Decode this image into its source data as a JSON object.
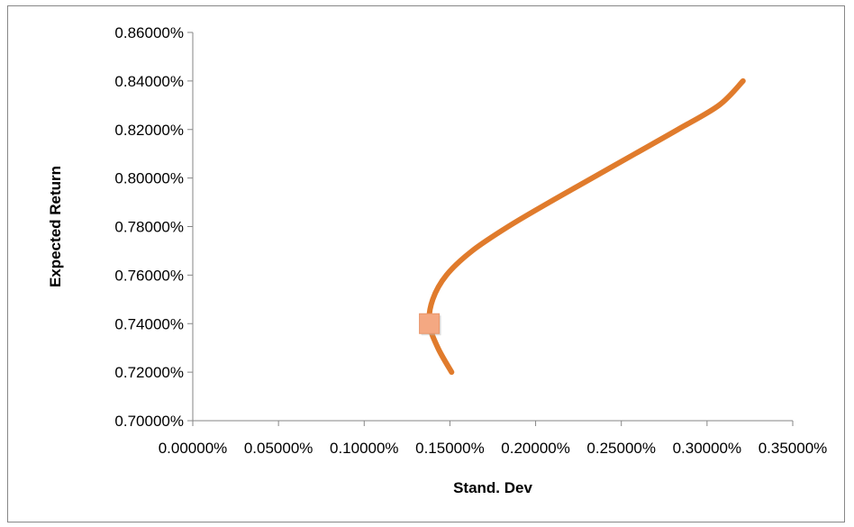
{
  "chart_data": {
    "type": "line",
    "title": "",
    "xlabel": "Stand. Dev",
    "ylabel": "Expected Return",
    "xlim": [
      0,
      0.35
    ],
    "ylim": [
      0.7,
      0.86
    ],
    "x_ticks": [
      "0.00000%",
      "0.05000%",
      "0.10000%",
      "0.15000%",
      "0.20000%",
      "0.25000%",
      "0.30000%",
      "0.35000%"
    ],
    "y_ticks": [
      "0.70000%",
      "0.72000%",
      "0.74000%",
      "0.76000%",
      "0.78000%",
      "0.80000%",
      "0.82000%",
      "0.84000%",
      "0.86000%"
    ],
    "grid": false,
    "legend": "none",
    "series": [
      {
        "type": "line",
        "color": "#E07B2C",
        "points": [
          {
            "x": 0.151,
            "y": 0.72
          },
          {
            "x": 0.143,
            "y": 0.73
          },
          {
            "x": 0.138,
            "y": 0.74
          },
          {
            "x": 0.14,
            "y": 0.75
          },
          {
            "x": 0.148,
            "y": 0.76
          },
          {
            "x": 0.163,
            "y": 0.77
          },
          {
            "x": 0.184,
            "y": 0.78
          },
          {
            "x": 0.208,
            "y": 0.79
          },
          {
            "x": 0.233,
            "y": 0.8
          },
          {
            "x": 0.258,
            "y": 0.81
          },
          {
            "x": 0.283,
            "y": 0.82
          },
          {
            "x": 0.307,
            "y": 0.83
          },
          {
            "x": 0.321,
            "y": 0.84
          }
        ]
      },
      {
        "type": "marker",
        "color": "#F4A882",
        "marker": "square",
        "points": [
          {
            "x": 0.138,
            "y": 0.74
          }
        ]
      }
    ]
  }
}
